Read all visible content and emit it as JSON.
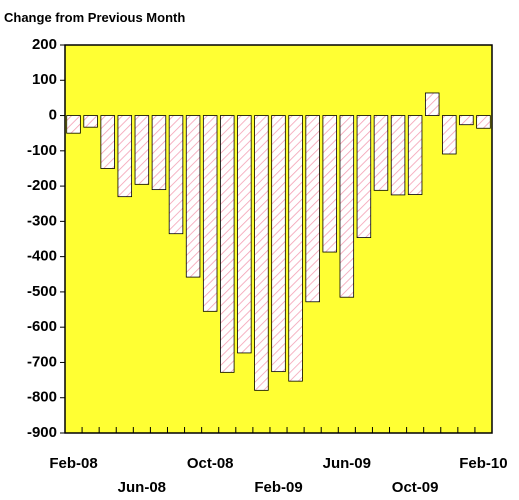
{
  "chart_data": {
    "type": "bar",
    "title": "Change from Previous Month",
    "categories": [
      "Feb-08",
      null,
      null,
      null,
      "Jun-08",
      null,
      null,
      null,
      "Oct-08",
      null,
      null,
      null,
      "Feb-09",
      null,
      null,
      null,
      "Jun-09",
      null,
      null,
      null,
      "Oct-09",
      null,
      null,
      null,
      "Feb-10"
    ],
    "values": [
      -50,
      -33,
      -150,
      -230,
      -195,
      -210,
      -335,
      -458,
      -555,
      -728,
      -673,
      -779,
      -726,
      -753,
      -528,
      -387,
      -515,
      -346,
      -212,
      -225,
      -224,
      64,
      -109,
      -26,
      -36
    ],
    "color": "#f4a0b4",
    "background": "#ffff33",
    "ylim": [
      -900,
      200
    ],
    "yticks": [
      -900,
      -800,
      -700,
      -600,
      -500,
      -400,
      -300,
      -200,
      -100,
      0,
      100,
      200
    ]
  }
}
